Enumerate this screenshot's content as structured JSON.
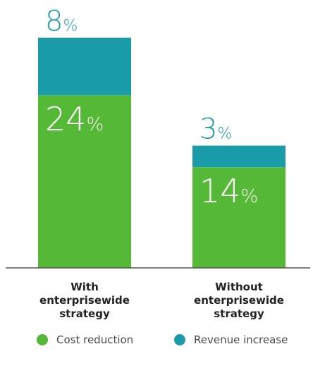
{
  "chart_data": {
    "type": "bar",
    "stacked": true,
    "categories": [
      "With enterprisewide strategy",
      "Without enterprisewide strategy"
    ],
    "category_lines": [
      [
        "With",
        "enterprisewide",
        "strategy"
      ],
      [
        "Without",
        "enterprisewide",
        "strategy"
      ]
    ],
    "series": [
      {
        "name": "Cost reduction",
        "values": [
          24,
          14
        ],
        "color": "#56b837"
      },
      {
        "name": "Revenue increase",
        "values": [
          8,
          3
        ],
        "color": "#1a9ba8"
      }
    ],
    "unit": "%",
    "ylim": [
      0,
      32
    ],
    "title": "",
    "xlabel": "",
    "ylabel": "",
    "legend_position": "bottom",
    "grid": false
  }
}
